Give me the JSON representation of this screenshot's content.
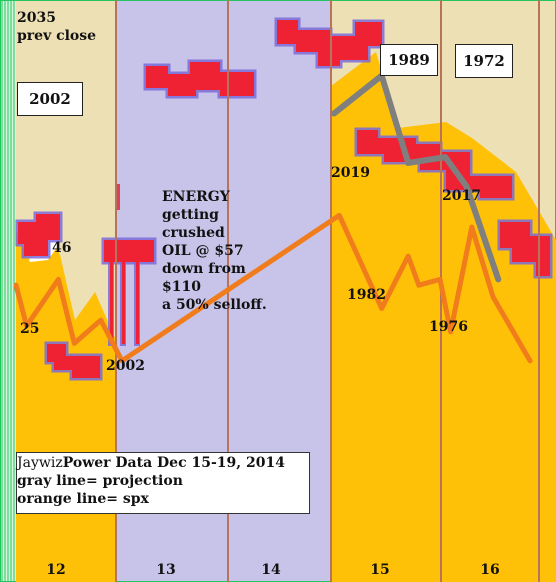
{
  "chart_data": {
    "type": "line",
    "title": "Power Data Dec 15-19, 2014",
    "source": "Jaywiz",
    "legend": [
      "gray line= projection",
      "orange line= spx"
    ],
    "categories": [
      "12",
      "13",
      "14",
      "15",
      "16"
    ],
    "annotations": {
      "top_left": [
        "2035",
        "prev close"
      ],
      "energy_note": [
        "ENERGY",
        "getting",
        "crushed",
        "OIL @ $57",
        "down from",
        "$110",
        "a 50% selloff."
      ]
    },
    "boxed_years": [
      "2002",
      "1989",
      "1972"
    ],
    "point_labels": [
      "46",
      "25",
      "2002",
      "2019",
      "1982",
      "1976",
      "2017"
    ],
    "series": [
      {
        "name": "projection",
        "color": "#7f7f7f",
        "x": [
          15.0,
          15.45,
          15.7,
          16.05,
          16.25,
          16.55
        ],
        "y": [
          0.805,
          0.87,
          0.72,
          0.73,
          0.68,
          0.52
        ]
      },
      {
        "name": "spx",
        "color": "#f07c1c",
        "x": [
          12.0,
          12.1,
          12.4,
          12.55,
          12.8,
          13.0,
          15.05,
          15.45,
          15.7,
          15.8,
          16.0,
          16.1,
          16.3,
          16.5,
          16.85
        ],
        "y": [
          0.51,
          0.44,
          0.52,
          0.41,
          0.45,
          0.38,
          0.63,
          0.47,
          0.56,
          0.51,
          0.52,
          0.43,
          0.61,
          0.49,
          0.38
        ]
      }
    ],
    "colors": {
      "background_lavender": "#c8c3e8",
      "background_beige": "#ede0b4",
      "fill_gold": "#ffc107",
      "red_blocks": "#ee2233",
      "divider": "#b8745a",
      "green_edge": "#22c55e"
    }
  }
}
